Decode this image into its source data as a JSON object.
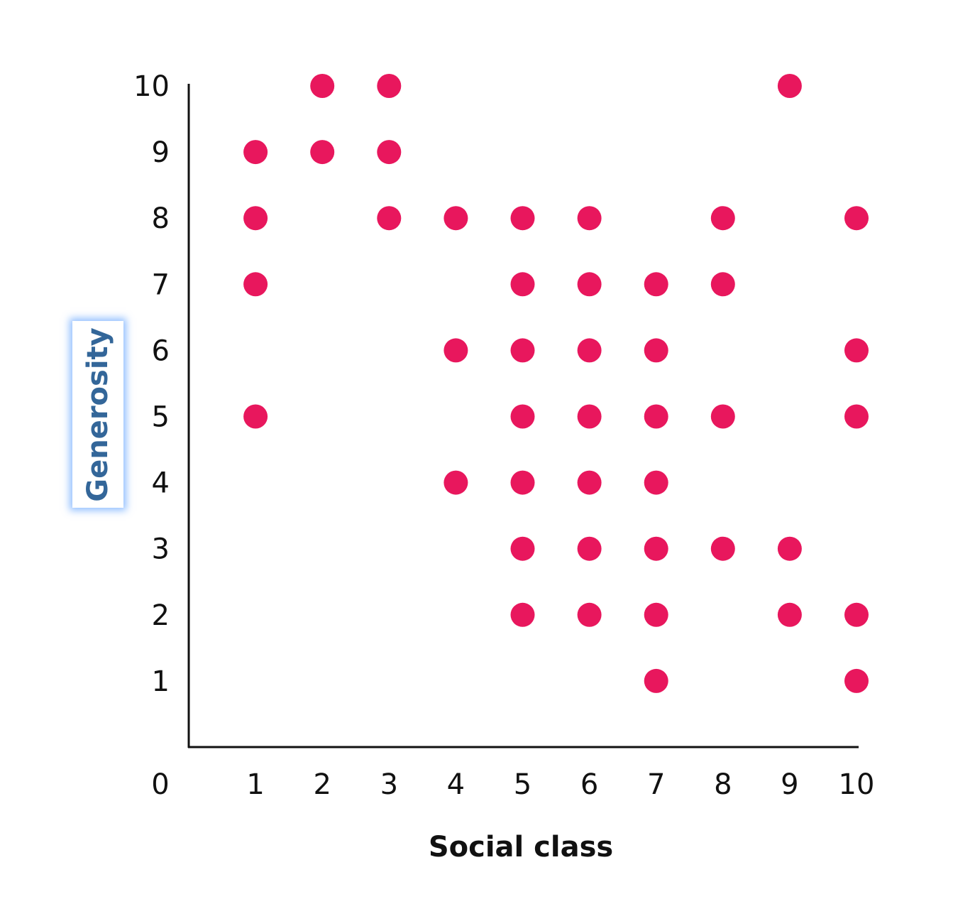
{
  "chart_data": {
    "type": "scatter",
    "title": "",
    "xlabel": "Social class",
    "ylabel": "Generosity",
    "xlim": [
      0,
      10
    ],
    "ylim": [
      0,
      10
    ],
    "xticks": [
      "0",
      "1",
      "2",
      "3",
      "4",
      "5",
      "6",
      "7",
      "8",
      "9",
      "10"
    ],
    "yticks": [
      "1",
      "2",
      "3",
      "4",
      "5",
      "6",
      "7",
      "8",
      "9",
      "10"
    ],
    "grid": false,
    "marker_color": "#e8175d",
    "ylabel_color": "#336699",
    "points": [
      [
        1,
        9
      ],
      [
        1,
        8
      ],
      [
        1,
        7
      ],
      [
        1,
        5
      ],
      [
        2,
        10
      ],
      [
        2,
        9
      ],
      [
        3,
        10
      ],
      [
        3,
        9
      ],
      [
        3,
        8
      ],
      [
        4,
        8
      ],
      [
        4,
        6
      ],
      [
        4,
        4
      ],
      [
        5,
        8
      ],
      [
        5,
        7
      ],
      [
        5,
        6
      ],
      [
        5,
        5
      ],
      [
        5,
        4
      ],
      [
        5,
        3
      ],
      [
        5,
        2
      ],
      [
        6,
        8
      ],
      [
        6,
        7
      ],
      [
        6,
        6
      ],
      [
        6,
        5
      ],
      [
        6,
        4
      ],
      [
        6,
        3
      ],
      [
        6,
        2
      ],
      [
        7,
        7
      ],
      [
        7,
        6
      ],
      [
        7,
        5
      ],
      [
        7,
        4
      ],
      [
        7,
        3
      ],
      [
        7,
        2
      ],
      [
        7,
        1
      ],
      [
        8,
        8
      ],
      [
        8,
        7
      ],
      [
        8,
        5
      ],
      [
        8,
        3
      ],
      [
        9,
        10
      ],
      [
        9,
        3
      ],
      [
        9,
        2
      ],
      [
        10,
        8
      ],
      [
        10,
        6
      ],
      [
        10,
        5
      ],
      [
        10,
        2
      ],
      [
        10,
        1
      ]
    ]
  }
}
